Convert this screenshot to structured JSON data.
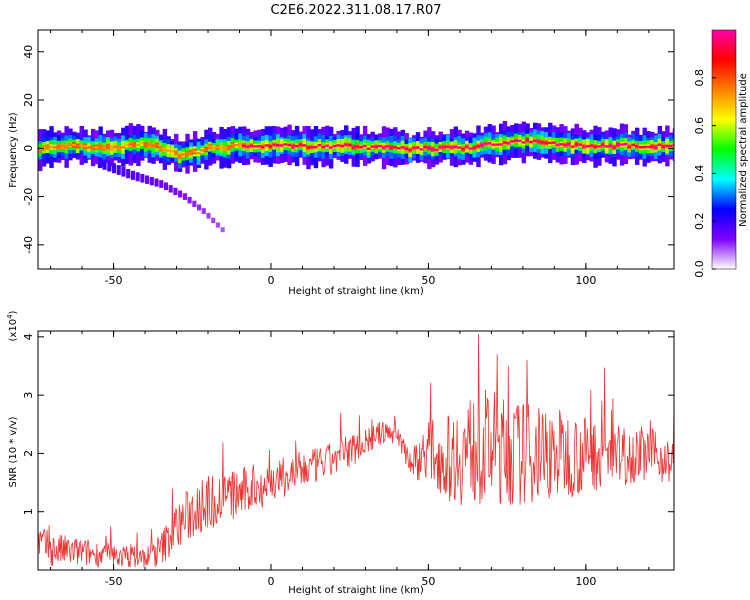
{
  "title": "C2E6.2022.311.08.17.R07",
  "chart_data": [
    {
      "type": "heatmap",
      "xlabel": "Height of straight line (km)",
      "ylabel": "Frequency (Hz)",
      "xlim": [
        -74,
        128
      ],
      "ylim": [
        -50,
        49
      ],
      "xticks": [
        -50,
        0,
        50,
        100
      ],
      "yticks": [
        -40,
        -20,
        0,
        20,
        40
      ],
      "colorbar": {
        "label": "Normalized spectral amplitude",
        "range": [
          0,
          1
        ],
        "ticks": [
          "0.0",
          "0.2",
          "0.4",
          "0.6",
          "0.8"
        ],
        "stops": [
          "#ffffff",
          "#7f00ff",
          "#0000ff",
          "#00ffff",
          "#00ff00",
          "#ffff00",
          "#ff8000",
          "#ff0000",
          "#ff00aa"
        ]
      },
      "ridge": [
        {
          "x": -74,
          "y": 0
        },
        {
          "x": -65,
          "y": 1
        },
        {
          "x": -55,
          "y": 0
        },
        {
          "x": -48,
          "y": 1
        },
        {
          "x": -42,
          "y": 2
        },
        {
          "x": -35,
          "y": 0
        },
        {
          "x": -30,
          "y": -3
        },
        {
          "x": -25,
          "y": -2
        },
        {
          "x": -20,
          "y": 0
        },
        {
          "x": -10,
          "y": 1
        },
        {
          "x": 0,
          "y": 1
        },
        {
          "x": 20,
          "y": 1
        },
        {
          "x": 40,
          "y": 0
        },
        {
          "x": 55,
          "y": 0
        },
        {
          "x": 60,
          "y": 0
        },
        {
          "x": 70,
          "y": 2
        },
        {
          "x": 80,
          "y": 3
        },
        {
          "x": 95,
          "y": 1
        },
        {
          "x": 110,
          "y": 1
        },
        {
          "x": 128,
          "y": 1
        }
      ],
      "branch": [
        {
          "x": -55,
          "y": -6
        },
        {
          "x": -45,
          "y": -11
        },
        {
          "x": -35,
          "y": -15
        },
        {
          "x": -28,
          "y": -20
        },
        {
          "x": -22,
          "y": -26
        },
        {
          "x": -15,
          "y": -35
        }
      ]
    },
    {
      "type": "line",
      "xlabel": "Height of straight line (km)",
      "ylabel": "SNR (10 * v/v)",
      "yscale_label": "(x10",
      "yscale_exp": "4",
      "xlim": [
        -74,
        128
      ],
      "ylim": [
        0,
        4.1
      ],
      "xticks": [
        -50,
        0,
        50,
        100
      ],
      "yticks": [
        1,
        2,
        3,
        4
      ],
      "color": "#ee3333",
      "series": [
        {
          "x": [
            -74,
            -70,
            -60,
            -50,
            -40,
            -35,
            -30,
            -25,
            -20,
            -15,
            -10,
            -5,
            0,
            5,
            10,
            15,
            20,
            25,
            30,
            35,
            40,
            45,
            50,
            55,
            60,
            65,
            70,
            75,
            80,
            85,
            90,
            95,
            100,
            105,
            110,
            115,
            120,
            125,
            128
          ],
          "y": [
            0.5,
            0.35,
            0.3,
            0.25,
            0.2,
            0.35,
            0.75,
            1.0,
            1.15,
            1.25,
            1.3,
            1.4,
            1.5,
            1.6,
            1.7,
            1.8,
            1.9,
            2.05,
            2.2,
            2.35,
            2.35,
            1.8,
            2.1,
            1.9,
            2.0,
            2.1,
            2.1,
            2.0,
            2.0,
            2.0,
            2.0,
            2.0,
            1.95,
            2.0,
            1.95,
            2.0,
            2.0,
            1.9,
            1.8
          ],
          "amp": [
            0.3,
            0.3,
            0.25,
            0.2,
            0.2,
            0.3,
            0.4,
            0.5,
            0.5,
            0.45,
            0.45,
            0.4,
            0.35,
            0.35,
            0.35,
            0.3,
            0.3,
            0.3,
            0.25,
            0.2,
            0.2,
            0.3,
            0.5,
            0.7,
            0.9,
            1.0,
            1.0,
            0.95,
            0.9,
            0.85,
            0.8,
            0.75,
            0.7,
            0.6,
            0.55,
            0.5,
            0.45,
            0.4,
            0.4
          ]
        }
      ]
    }
  ]
}
